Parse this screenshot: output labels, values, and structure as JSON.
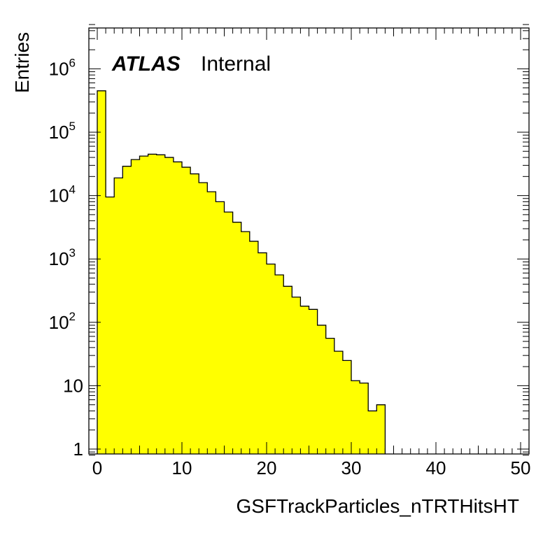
{
  "chart_data": {
    "type": "bar",
    "style": "filled-step-histogram",
    "fill_color": "#ffff00",
    "line_color": "#000000",
    "title": "",
    "xlabel": "GSFTrackParticles_nTRTHitsHT",
    "ylabel": "Entries",
    "xlim": [
      0,
      50
    ],
    "ylim": [
      0.8,
      5000000
    ],
    "ylog": true,
    "grid": false,
    "bin_width": 1,
    "x_ticks": [
      "0",
      "10",
      "20",
      "30",
      "40",
      "50"
    ],
    "y_ticks": [
      {
        "base": "1",
        "exp": ""
      },
      {
        "base": "10",
        "exp": ""
      },
      {
        "base": "10",
        "exp": "2"
      },
      {
        "base": "10",
        "exp": "3"
      },
      {
        "base": "10",
        "exp": "4"
      },
      {
        "base": "10",
        "exp": "5"
      },
      {
        "base": "10",
        "exp": "6"
      }
    ],
    "label": {
      "experiment": "ATLAS",
      "status": "Internal"
    },
    "bin_edges_start": 0,
    "values": [
      450000,
      9500,
      19000,
      29000,
      37000,
      42000,
      45000,
      44000,
      40000,
      34000,
      28000,
      22000,
      16000,
      11500,
      8000,
      5500,
      3800,
      2700,
      1900,
      1250,
      830,
      560,
      370,
      250,
      180,
      160,
      90,
      56,
      35,
      25,
      12,
      11,
      4,
      5
    ]
  }
}
